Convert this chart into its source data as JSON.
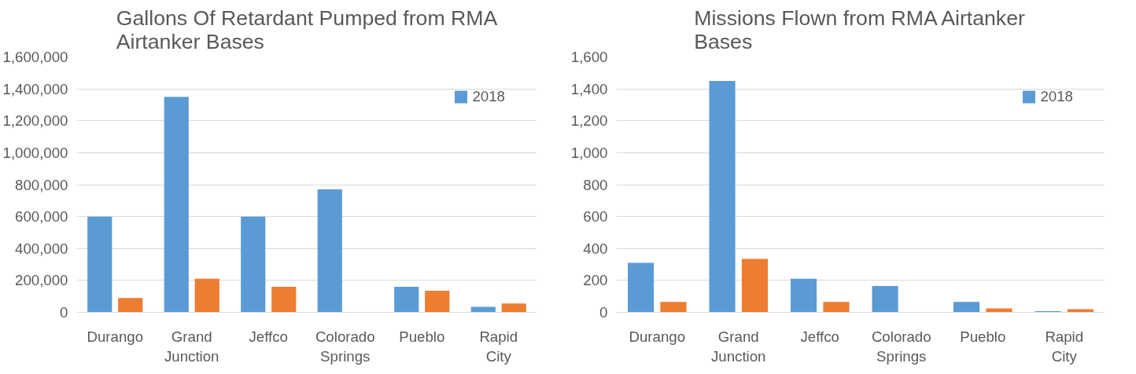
{
  "chart_data": [
    {
      "type": "bar",
      "title": "Gallons Of Retardant Pumped from RMA Airtanker Bases",
      "categories": [
        "Durango",
        "Grand Junction",
        "Jeffco",
        "Colorado Springs",
        "Pueblo",
        "Rapid City"
      ],
      "series": [
        {
          "name": "2018",
          "color": "#5b9bd5",
          "values": [
            600000,
            1350000,
            600000,
            770000,
            160000,
            35000
          ]
        },
        {
          "color": "#ed7d31",
          "values": [
            90000,
            210000,
            160000,
            0,
            135000,
            55000
          ]
        }
      ],
      "ylim": [
        0,
        1600000
      ],
      "yticks": [
        {
          "value": 0,
          "label": "0"
        },
        {
          "value": 200000,
          "label": "200,000"
        },
        {
          "value": 400000,
          "label": "400,000"
        },
        {
          "value": 600000,
          "label": "600,000"
        },
        {
          "value": 800000,
          "label": "800,000"
        },
        {
          "value": 1000000,
          "label": "1,000,000"
        },
        {
          "value": 1200000,
          "label": "1,200,000"
        },
        {
          "value": 1400000,
          "label": "1,400,000"
        },
        {
          "value": 1600000,
          "label": "1,600,000"
        }
      ],
      "grid": "y",
      "legend": "top right"
    },
    {
      "type": "bar",
      "title": "Missions Flown from RMA Airtanker Bases",
      "categories": [
        "Durango",
        "Grand Junction",
        "Jeffco",
        "Colorado Springs",
        "Pueblo",
        "Rapid City"
      ],
      "series": [
        {
          "name": "2018",
          "color": "#5b9bd5",
          "values": [
            310,
            1450,
            210,
            165,
            65,
            8
          ]
        },
        {
          "color": "#ed7d31",
          "values": [
            65,
            335,
            65,
            0,
            25,
            20
          ]
        }
      ],
      "ylim": [
        0,
        1600
      ],
      "yticks": [
        {
          "value": 0,
          "label": "0"
        },
        {
          "value": 200,
          "label": "200"
        },
        {
          "value": 400,
          "label": "400"
        },
        {
          "value": 600,
          "label": "600"
        },
        {
          "value": 800,
          "label": "800"
        },
        {
          "value": 1000,
          "label": "1,000"
        },
        {
          "value": 1200,
          "label": "1,200"
        },
        {
          "value": 1400,
          "label": "1,400"
        },
        {
          "value": 1600,
          "label": "1,600"
        }
      ],
      "grid": "y",
      "legend": "top right"
    }
  ]
}
